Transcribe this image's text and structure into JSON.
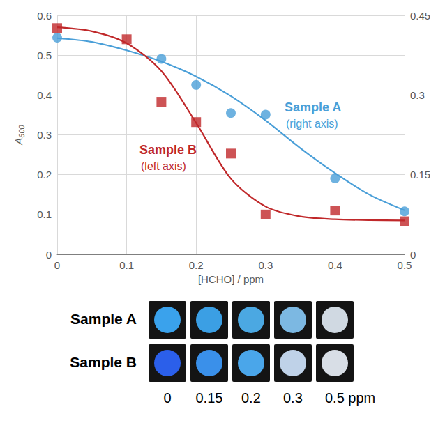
{
  "chart_data": {
    "type": "scatter",
    "xlabel": "[HCHO] / ppm",
    "ylabel": "A600",
    "xlim": [
      0,
      0.5
    ],
    "xticks": [
      0,
      0.1,
      0.2,
      0.3,
      0.4,
      0.5
    ],
    "ylim": [
      0,
      0.6
    ],
    "yticks": [
      0,
      0.1,
      0.2,
      0.3,
      0.4,
      0.5,
      0.6
    ],
    "y2lim": [
      0,
      0.45
    ],
    "y2ticks": [
      0,
      0.15,
      0.3,
      0.45
    ],
    "grid": true,
    "series": [
      {
        "name": "Sample A",
        "type": "line",
        "axis": "y2",
        "color": "#4a9fd8",
        "line_style": "solid",
        "x": [
          0,
          0.05,
          0.1,
          0.15,
          0.2,
          0.25,
          0.3,
          0.35,
          0.4,
          0.45,
          0.5
        ],
        "values": [
          0.407,
          0.4,
          0.384,
          0.363,
          0.335,
          0.298,
          0.252,
          0.2,
          0.153,
          0.112,
          0.083
        ]
      },
      {
        "name": "Sample B",
        "type": "line",
        "color": "#c0282a",
        "line_style": "solid",
        "x": [
          0,
          0.05,
          0.1,
          0.15,
          0.2,
          0.25,
          0.3,
          0.35,
          0.4,
          0.45,
          0.5
        ],
        "values": [
          0.57,
          0.56,
          0.53,
          0.46,
          0.33,
          0.19,
          0.12,
          0.095,
          0.088,
          0.086,
          0.085
        ]
      },
      {
        "name": "Sample A",
        "type": "scatter",
        "axis": "y2",
        "color": "#4a9fd8",
        "marker": "circle",
        "x": [
          0,
          0.15,
          0.2,
          0.25,
          0.3,
          0.4,
          0.5
        ],
        "values": [
          0.408,
          0.368,
          0.319,
          0.266,
          0.263,
          0.143,
          0.081
        ]
      },
      {
        "name": "Sample B",
        "type": "scatter",
        "color": "#c0282a",
        "marker": "square",
        "x": [
          0,
          0.1,
          0.15,
          0.2,
          0.25,
          0.3,
          0.4,
          0.5
        ],
        "values": [
          0.568,
          0.54,
          0.383,
          0.332,
          0.253,
          0.1,
          0.11,
          0.083
        ]
      }
    ],
    "annotations": [
      {
        "text": "Sample A",
        "note": "(right axis)",
        "series": "Sample A"
      },
      {
        "text": "Sample B",
        "note": "(left axis)",
        "series": "Sample B"
      }
    ]
  },
  "photos": {
    "rows": [
      {
        "label": "Sample A",
        "colors": [
          "#3aa2ec",
          "#3b9fe4",
          "#4ba8e2",
          "#7cb8e2",
          "#d0d9e2"
        ]
      },
      {
        "label": "Sample B",
        "colors": [
          "#2b5fea",
          "#3a90ea",
          "#4aa6ea",
          "#bfd2e8",
          "#d8dee6"
        ]
      }
    ],
    "labels": [
      "0",
      "0.15",
      "0.2",
      "0.3",
      "0.5 ppm"
    ]
  }
}
